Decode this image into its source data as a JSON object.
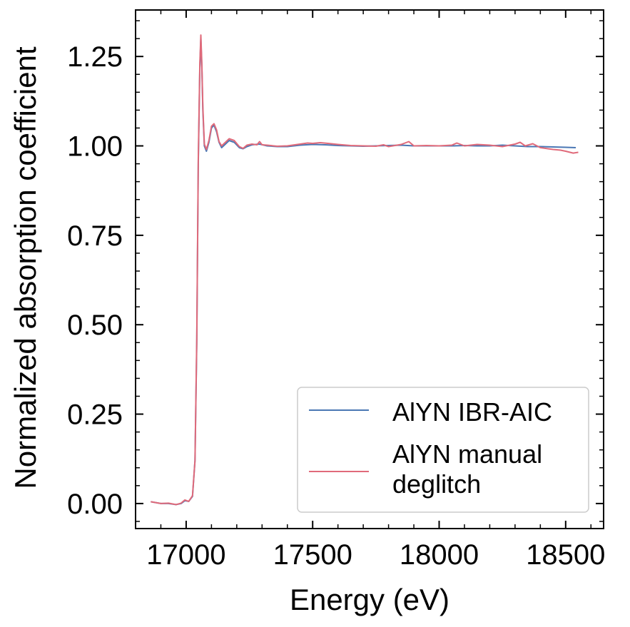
{
  "chart_data": {
    "type": "line",
    "xlabel": "Energy (eV)",
    "ylabel": "Normalized absorption coefficient",
    "xlim": [
      16800,
      18650
    ],
    "ylim": [
      -0.07,
      1.38
    ],
    "x_ticks": [
      17000,
      17500,
      18000,
      18500
    ],
    "x_tick_labels": [
      "17000",
      "17500",
      "18000",
      "18500"
    ],
    "y_ticks": [
      0.0,
      0.25,
      0.5,
      0.75,
      1.0,
      1.25
    ],
    "y_tick_labels": [
      "0.00",
      "0.25",
      "0.50",
      "0.75",
      "1.00",
      "1.25"
    ],
    "grid": false,
    "legend_position": "lower right",
    "series": [
      {
        "name": "AlYN IBR-AIC",
        "color": "#4a77b4",
        "points": [
          [
            16860,
            0.005
          ],
          [
            16900,
            0.0
          ],
          [
            16930,
            0.0
          ],
          [
            16960,
            -0.003
          ],
          [
            16980,
            0.0
          ],
          [
            16995,
            0.008
          ],
          [
            17010,
            0.006
          ],
          [
            17025,
            0.02
          ],
          [
            17035,
            0.12
          ],
          [
            17042,
            0.45
          ],
          [
            17048,
            0.95
          ],
          [
            17054,
            1.22
          ],
          [
            17058,
            1.3
          ],
          [
            17062,
            1.22
          ],
          [
            17066,
            1.1
          ],
          [
            17072,
            1.0
          ],
          [
            17080,
            0.985
          ],
          [
            17090,
            1.01
          ],
          [
            17100,
            1.05
          ],
          [
            17110,
            1.058
          ],
          [
            17120,
            1.04
          ],
          [
            17130,
            1.01
          ],
          [
            17140,
            0.995
          ],
          [
            17155,
            1.005
          ],
          [
            17170,
            1.015
          ],
          [
            17190,
            1.01
          ],
          [
            17210,
            0.995
          ],
          [
            17225,
            0.992
          ],
          [
            17240,
            0.998
          ],
          [
            17260,
            1.003
          ],
          [
            17290,
            1.005
          ],
          [
            17320,
            1.0
          ],
          [
            17360,
            0.998
          ],
          [
            17400,
            0.998
          ],
          [
            17450,
            1.002
          ],
          [
            17500,
            1.004
          ],
          [
            17550,
            1.003
          ],
          [
            17600,
            1.001
          ],
          [
            17650,
            1.0
          ],
          [
            17700,
            0.999
          ],
          [
            17750,
            1.0
          ],
          [
            17800,
            1.001
          ],
          [
            17850,
            1.002
          ],
          [
            17900,
            1.0
          ],
          [
            17950,
            1.0
          ],
          [
            18000,
            1.0
          ],
          [
            18050,
            1.0
          ],
          [
            18100,
            1.001
          ],
          [
            18150,
            1.0
          ],
          [
            18200,
            1.0
          ],
          [
            18250,
            1.002
          ],
          [
            18300,
            1.0
          ],
          [
            18350,
            0.998
          ],
          [
            18400,
            0.998
          ],
          [
            18450,
            0.997
          ],
          [
            18500,
            0.996
          ],
          [
            18540,
            0.995
          ]
        ]
      },
      {
        "name": "AlYN manual\ndeglitch",
        "color": "#e06a7a",
        "points": [
          [
            16860,
            0.005
          ],
          [
            16900,
            0.0
          ],
          [
            16930,
            0.001
          ],
          [
            16960,
            -0.003
          ],
          [
            16980,
            0.001
          ],
          [
            16995,
            0.01
          ],
          [
            17010,
            0.006
          ],
          [
            17025,
            0.022
          ],
          [
            17035,
            0.12
          ],
          [
            17042,
            0.46
          ],
          [
            17048,
            0.96
          ],
          [
            17054,
            1.23
          ],
          [
            17058,
            1.31
          ],
          [
            17062,
            1.23
          ],
          [
            17066,
            1.11
          ],
          [
            17072,
            1.005
          ],
          [
            17080,
            0.99
          ],
          [
            17090,
            1.015
          ],
          [
            17100,
            1.055
          ],
          [
            17110,
            1.062
          ],
          [
            17120,
            1.045
          ],
          [
            17130,
            1.012
          ],
          [
            17140,
            1.0
          ],
          [
            17155,
            1.01
          ],
          [
            17170,
            1.02
          ],
          [
            17190,
            1.015
          ],
          [
            17210,
            0.998
          ],
          [
            17225,
            0.993
          ],
          [
            17240,
            1.002
          ],
          [
            17260,
            1.005
          ],
          [
            17280,
            1.003
          ],
          [
            17290,
            1.012
          ],
          [
            17300,
            1.003
          ],
          [
            17320,
            1.002
          ],
          [
            17360,
            0.999
          ],
          [
            17400,
            1.0
          ],
          [
            17450,
            1.005
          ],
          [
            17480,
            1.008
          ],
          [
            17500,
            1.007
          ],
          [
            17530,
            1.009
          ],
          [
            17560,
            1.007
          ],
          [
            17600,
            1.004
          ],
          [
            17650,
            1.001
          ],
          [
            17700,
            1.0
          ],
          [
            17750,
            0.999
          ],
          [
            17780,
            1.003
          ],
          [
            17800,
            0.998
          ],
          [
            17850,
            1.004
          ],
          [
            17880,
            1.012
          ],
          [
            17900,
            1.0
          ],
          [
            17950,
            1.001
          ],
          [
            18000,
            1.0
          ],
          [
            18050,
            1.002
          ],
          [
            18070,
            1.008
          ],
          [
            18100,
            1.0
          ],
          [
            18150,
            1.004
          ],
          [
            18200,
            1.002
          ],
          [
            18250,
            0.998
          ],
          [
            18300,
            1.005
          ],
          [
            18320,
            1.01
          ],
          [
            18340,
            1.0
          ],
          [
            18370,
            1.006
          ],
          [
            18400,
            0.995
          ],
          [
            18430,
            0.992
          ],
          [
            18450,
            0.99
          ],
          [
            18480,
            0.988
          ],
          [
            18500,
            0.985
          ],
          [
            18530,
            0.98
          ],
          [
            18550,
            0.982
          ]
        ]
      }
    ]
  }
}
